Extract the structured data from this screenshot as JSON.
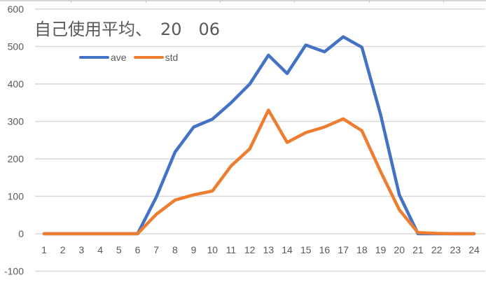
{
  "chart_data": {
    "type": "line",
    "title": "自己使用平均、　20　06",
    "xlabel": "",
    "ylabel": "",
    "x": [
      1,
      2,
      3,
      4,
      5,
      6,
      7,
      8,
      9,
      10,
      11,
      12,
      13,
      14,
      15,
      16,
      17,
      18,
      19,
      20,
      21,
      22,
      23,
      24
    ],
    "categories": [
      "1",
      "2",
      "3",
      "4",
      "5",
      "6",
      "7",
      "8",
      "9",
      "10",
      "11",
      "12",
      "13",
      "14",
      "15",
      "16",
      "17",
      "18",
      "19",
      "20",
      "21",
      "22",
      "23",
      "24"
    ],
    "series": [
      {
        "name": "ave",
        "color": "#4472C4",
        "values": [
          0,
          0,
          0,
          0,
          0,
          0,
          98,
          218,
          285,
          306,
          350,
          400,
          477,
          428,
          504,
          486,
          526,
          498,
          318,
          104,
          0,
          0,
          0,
          0
        ]
      },
      {
        "name": "std",
        "color": "#ED7D31",
        "values": [
          0,
          0,
          0,
          0,
          0,
          0,
          52,
          90,
          104,
          114,
          181,
          227,
          330,
          244,
          270,
          285,
          307,
          275,
          166,
          64,
          3,
          1,
          0,
          0
        ]
      }
    ],
    "ylim": [
      -100,
      600
    ],
    "yticks": [
      600,
      500,
      400,
      300,
      200,
      100,
      0,
      -100
    ],
    "grid": true,
    "legend_position": "top-left (inside plot)"
  },
  "legend": {
    "items": [
      {
        "label": "ave",
        "color": "#4472C4"
      },
      {
        "label": "std",
        "color": "#ED7D31"
      }
    ]
  },
  "colors": {
    "grid": "#D9D9D9",
    "text": "#595959"
  }
}
